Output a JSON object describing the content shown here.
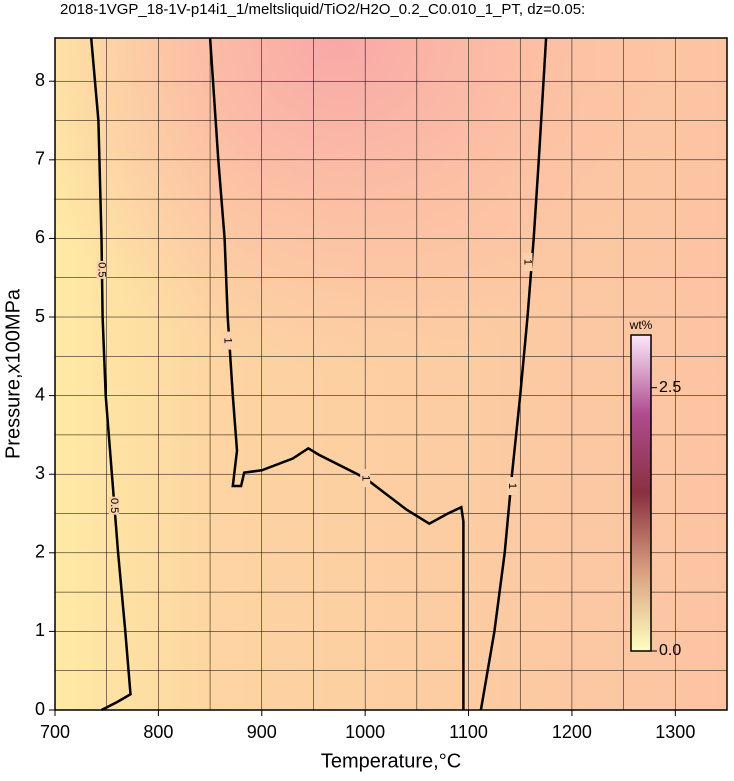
{
  "chart_data": {
    "type": "contour",
    "title": "2018-1VGP_18-1V-p14i1_1/meltsliquid/TiO2/H2O_0.2_C0.010_1_PT, dz=0.05:",
    "x_label": "Temperature,°C",
    "y_label": "Pressure,x100MPa",
    "xlim": [
      700,
      1350
    ],
    "ylim": [
      0,
      8.55
    ],
    "xticks": [
      700,
      800,
      900,
      1000,
      1100,
      1200,
      1300
    ],
    "yticks": [
      0,
      1,
      2,
      3,
      4,
      5,
      6,
      7,
      8
    ],
    "xminor": [
      750,
      850,
      950,
      1050,
      1150,
      1250
    ],
    "yminor": [
      0.5,
      1.5,
      2.5,
      3.5,
      4.5,
      5.5,
      6.5,
      7.5
    ],
    "grid": true,
    "contours": [
      {
        "level": 0.5,
        "color": "#000000",
        "x": [
          735,
          742,
          745,
          746,
          749,
          755,
          761,
          768,
          773,
          760,
          745
        ],
        "y": [
          8.55,
          7.5,
          6,
          5,
          4,
          3,
          2,
          1,
          0.2,
          0.1,
          0
        ]
      },
      {
        "level": 1,
        "color": "#000000",
        "x": [
          850,
          858,
          864,
          867,
          872,
          876,
          872,
          880,
          883,
          900,
          930,
          945,
          955,
          1000,
          1040,
          1062,
          1080,
          1093,
          1095,
          1095
        ],
        "y": [
          8.55,
          7,
          6,
          5,
          4,
          3.3,
          2.85,
          2.85,
          3.02,
          3.05,
          3.2,
          3.33,
          3.25,
          2.95,
          2.55,
          2.37,
          2.5,
          2.58,
          2.4,
          0
        ]
      },
      {
        "level": 1,
        "color": "#000000",
        "x": [
          1112,
          1125,
          1135,
          1142,
          1150,
          1157,
          1163,
          1168,
          1175
        ],
        "y": [
          0,
          1,
          2,
          3,
          4,
          5,
          6,
          7,
          8.55
        ]
      }
    ],
    "contour_labels": [
      {
        "contour": 0,
        "x": 745,
        "y": 5.6
      },
      {
        "contour": 0,
        "x": 757,
        "y": 2.6
      },
      {
        "contour": 1,
        "x": 867,
        "y": 4.7
      },
      {
        "contour": 1,
        "x": 1000,
        "y": 2.95
      },
      {
        "contour": 2,
        "x": 1157,
        "y": 5.7
      },
      {
        "contour": 2,
        "x": 1142,
        "y": 2.85
      }
    ],
    "colorbar": {
      "label": "wt%",
      "clim": [
        0,
        3.0
      ],
      "ticks": [
        {
          "value": 0,
          "label": "0.0"
        },
        {
          "value": 2.5,
          "label": "2.5"
        }
      ]
    }
  }
}
